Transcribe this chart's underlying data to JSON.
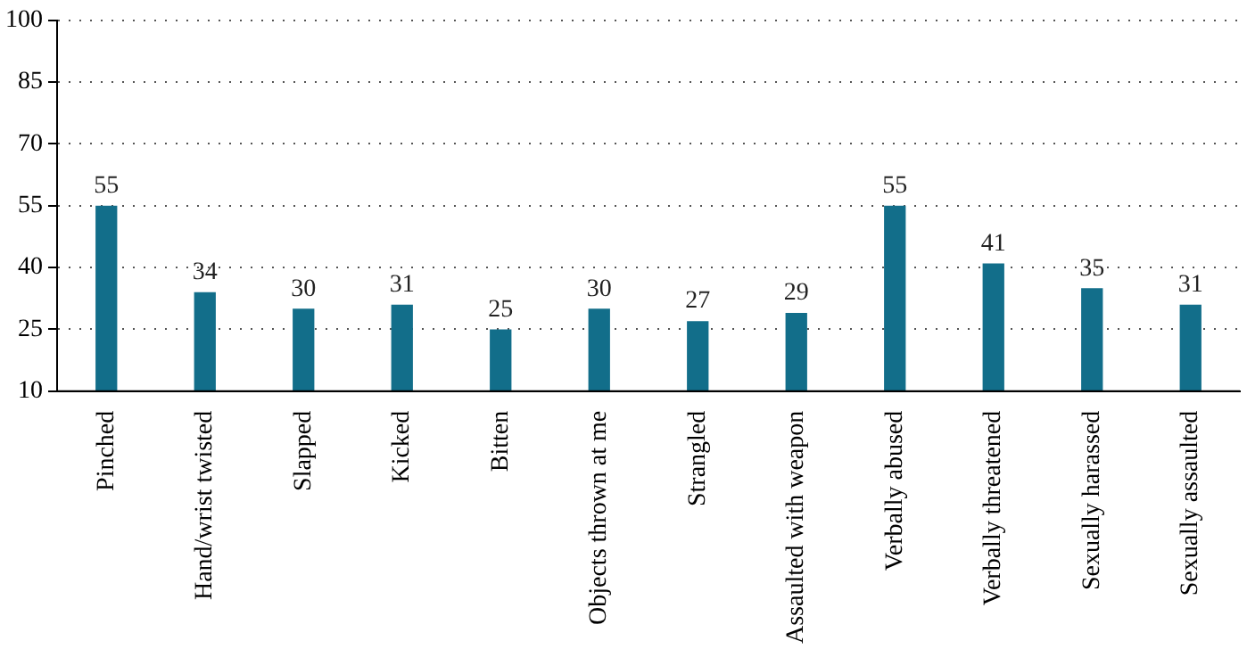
{
  "chart_data": {
    "type": "bar",
    "categories": [
      "Pinched",
      "Hand/wrist twisted",
      "Slapped",
      "Kicked",
      "Bitten",
      "Objects thrown at me",
      "Strangled",
      "Assaulted with weapon",
      "Verbally abused",
      "Verbally threatened",
      "Sexually harassed",
      "Sexually assaulted"
    ],
    "values": [
      55,
      34,
      30,
      31,
      25,
      30,
      27,
      29,
      55,
      41,
      35,
      31
    ],
    "color": "#126e8a",
    "ylim": [
      10,
      100
    ],
    "yticks": [
      10,
      25,
      40,
      55,
      70,
      85,
      100
    ],
    "grid": "y",
    "data_labels": true,
    "legend": false
  }
}
